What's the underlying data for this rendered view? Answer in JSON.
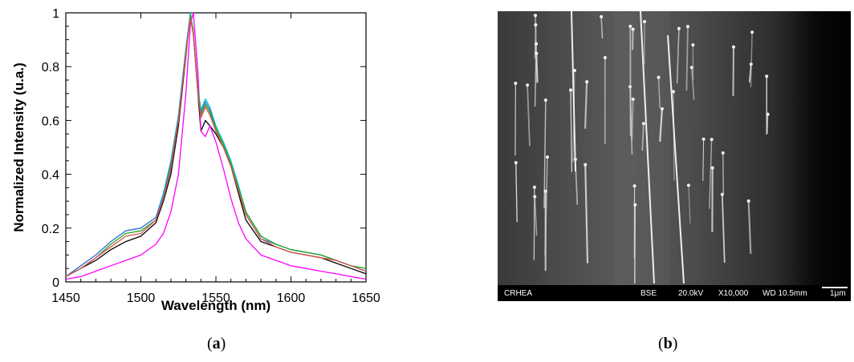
{
  "chart_data": {
    "type": "line",
    "title": "",
    "xlabel": "Wavelength (nm)",
    "ylabel": "Normalized Intensity (u.a.)",
    "xlim": [
      1450,
      1650
    ],
    "ylim": [
      0,
      1
    ],
    "xticks": [
      1450,
      1500,
      1550,
      1600,
      1650
    ],
    "yticks": [
      0,
      0.2,
      0.4,
      0.6,
      0.8,
      1
    ],
    "ytick_labels": [
      "0",
      "0.2",
      "0.4",
      "0.6",
      "0.8",
      "1"
    ],
    "grid": false,
    "legend": "none",
    "x": [
      1450,
      1460,
      1470,
      1480,
      1490,
      1500,
      1510,
      1515,
      1520,
      1525,
      1530,
      1533,
      1535,
      1538,
      1540,
      1543,
      1546,
      1550,
      1555,
      1560,
      1565,
      1570,
      1580,
      1590,
      1600,
      1610,
      1620,
      1630,
      1640,
      1650
    ],
    "series": [
      {
        "color": "#000000",
        "values": [
          0.02,
          0.05,
          0.08,
          0.12,
          0.15,
          0.17,
          0.22,
          0.3,
          0.4,
          0.58,
          0.84,
          1.0,
          0.92,
          0.7,
          0.56,
          0.6,
          0.58,
          0.55,
          0.5,
          0.43,
          0.33,
          0.23,
          0.15,
          0.13,
          0.11,
          0.1,
          0.09,
          0.07,
          0.05,
          0.03
        ]
      },
      {
        "color": "#ff00ff",
        "values": [
          0.01,
          0.02,
          0.04,
          0.06,
          0.08,
          0.1,
          0.14,
          0.18,
          0.26,
          0.4,
          0.7,
          0.96,
          1.0,
          0.78,
          0.56,
          0.54,
          0.58,
          0.52,
          0.42,
          0.31,
          0.22,
          0.16,
          0.1,
          0.08,
          0.06,
          0.05,
          0.04,
          0.03,
          0.02,
          0.01
        ]
      },
      {
        "color": "#00cccc",
        "values": [
          0.02,
          0.06,
          0.1,
          0.15,
          0.19,
          0.2,
          0.24,
          0.33,
          0.45,
          0.62,
          0.87,
          1.0,
          0.93,
          0.72,
          0.64,
          0.68,
          0.65,
          0.58,
          0.52,
          0.45,
          0.36,
          0.26,
          0.17,
          0.14,
          0.12,
          0.11,
          0.1,
          0.08,
          0.06,
          0.04
        ]
      },
      {
        "color": "#4a6fd6",
        "values": [
          0.02,
          0.06,
          0.1,
          0.15,
          0.19,
          0.2,
          0.24,
          0.32,
          0.44,
          0.61,
          0.86,
          0.99,
          0.92,
          0.71,
          0.63,
          0.67,
          0.64,
          0.57,
          0.51,
          0.44,
          0.35,
          0.25,
          0.16,
          0.14,
          0.12,
          0.11,
          0.1,
          0.08,
          0.06,
          0.04
        ]
      },
      {
        "color": "#22aa22",
        "values": [
          0.02,
          0.05,
          0.09,
          0.14,
          0.18,
          0.19,
          0.23,
          0.31,
          0.43,
          0.6,
          0.85,
          0.99,
          0.93,
          0.71,
          0.62,
          0.66,
          0.63,
          0.57,
          0.51,
          0.44,
          0.35,
          0.26,
          0.17,
          0.14,
          0.12,
          0.11,
          0.1,
          0.08,
          0.06,
          0.05
        ]
      },
      {
        "color": "#e05050",
        "values": [
          0.02,
          0.05,
          0.09,
          0.13,
          0.17,
          0.18,
          0.23,
          0.31,
          0.42,
          0.6,
          0.85,
          0.98,
          0.92,
          0.7,
          0.61,
          0.65,
          0.62,
          0.56,
          0.5,
          0.43,
          0.34,
          0.25,
          0.16,
          0.13,
          0.11,
          0.1,
          0.09,
          0.08,
          0.06,
          0.04
        ]
      }
    ]
  },
  "panels": {
    "a_label": "a",
    "b_label": "b"
  },
  "sem_image": {
    "footer": {
      "lab": "CRHEA",
      "mode": "BSE",
      "voltage": "20.0kV",
      "magnification": "X10,000",
      "working_distance": "WD 10.5mm",
      "scale": "1μm"
    }
  }
}
